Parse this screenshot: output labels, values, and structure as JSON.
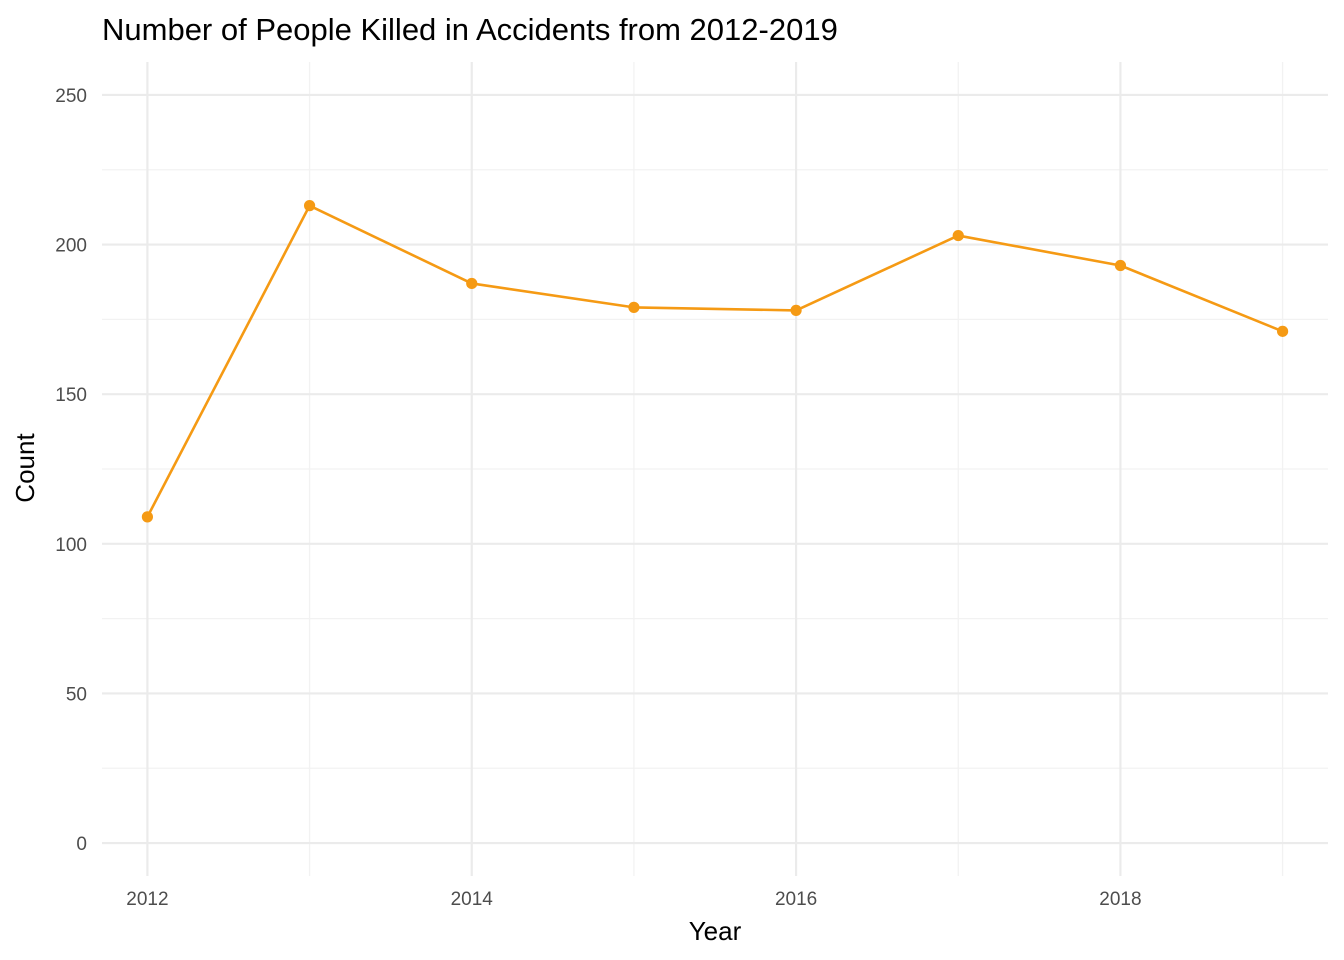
{
  "chart_data": {
    "type": "line",
    "title": "Number of People Killed in Accidents from 2012-2019",
    "xlabel": "Year",
    "ylabel": "Count",
    "x": [
      2012,
      2013,
      2014,
      2015,
      2016,
      2017,
      2018,
      2019
    ],
    "y": [
      109,
      213,
      187,
      179,
      178,
      203,
      193,
      171
    ],
    "xlim": [
      2011.72,
      2019.28
    ],
    "ylim": [
      -11,
      261
    ],
    "x_ticks": [
      2012,
      2014,
      2016,
      2018
    ],
    "x_tick_labels": [
      "2012",
      "2014",
      "2016",
      "2018"
    ],
    "x_minor_ticks": [
      2013,
      2015,
      2017,
      2019
    ],
    "y_ticks": [
      0,
      50,
      100,
      150,
      200,
      250
    ],
    "y_tick_labels": [
      "0",
      "50",
      "100",
      "150",
      "200",
      "250"
    ],
    "y_minor_ticks": [
      25,
      75,
      125,
      175,
      225
    ],
    "grid": true,
    "legend": "none",
    "colors": {
      "series": "#f59a14",
      "grid_major": "#ebebeb",
      "grid_minor": "#f2f2f2",
      "tick_text": "#4d4d4d"
    }
  }
}
